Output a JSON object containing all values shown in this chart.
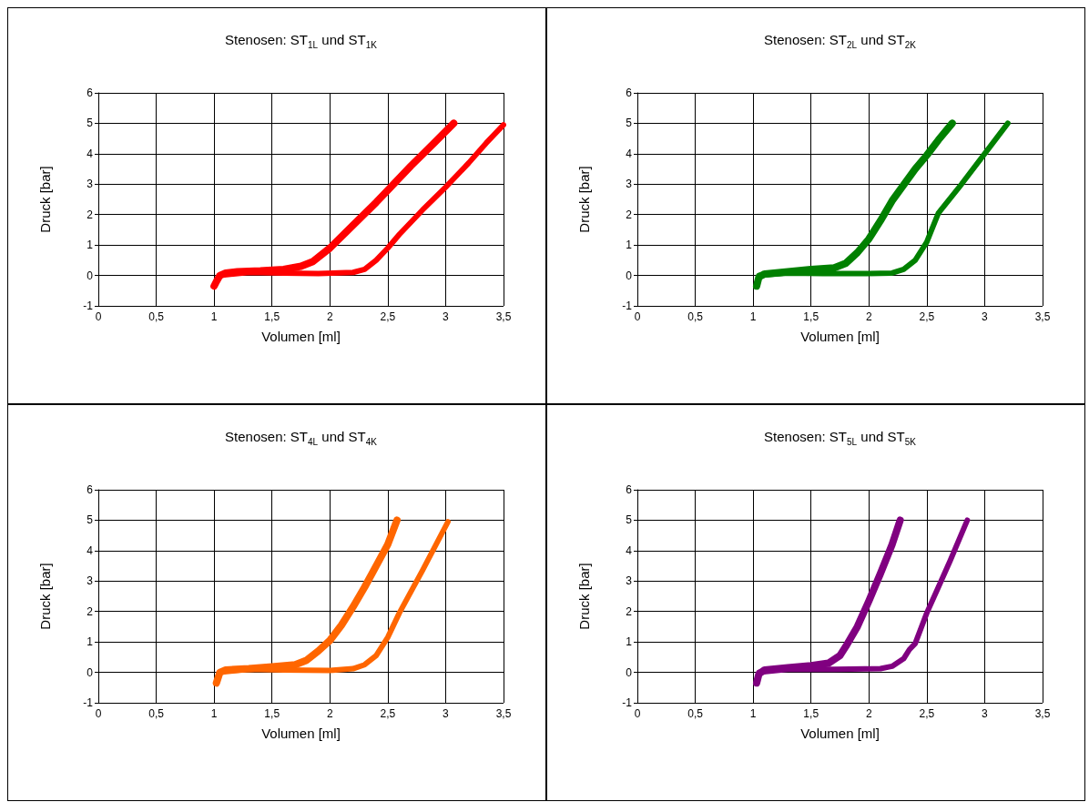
{
  "chart_data": [
    {
      "type": "line",
      "title": "Stenosen: ST$_{1L}$ und ST$_{1K}$",
      "xlabel": "Volumen [ml]",
      "ylabel": "Druck [bar]",
      "xlim": [
        0,
        3.5
      ],
      "ylim": [
        -1,
        6
      ],
      "xticks": [
        0,
        {
          "value": 0.5,
          "label": "0,5"
        },
        1,
        {
          "value": 1.5,
          "label": "1,5"
        },
        2,
        {
          "value": 2.5,
          "label": "2,5"
        },
        3,
        {
          "value": 3.5,
          "label": "3,5"
        }
      ],
      "yticks": [
        -1,
        0,
        1,
        2,
        3,
        4,
        5,
        6
      ],
      "grid": true,
      "line_style": "solid",
      "series": [
        {
          "color": "#ff0000",
          "x": [
            1.0,
            1.02,
            1.05,
            1.1,
            1.2,
            1.4,
            1.6,
            1.75,
            1.85,
            2.0,
            2.2,
            2.4,
            2.5,
            2.7,
            2.9,
            3.07
          ],
          "values": [
            -0.35,
            -0.2,
            0.0,
            0.08,
            0.12,
            0.15,
            0.2,
            0.3,
            0.45,
            0.9,
            1.65,
            2.4,
            2.8,
            3.6,
            4.35,
            5.0
          ]
        },
        {
          "color": "#ff0000",
          "x": [
            1.0,
            1.05,
            1.3,
            1.6,
            1.9,
            2.2,
            2.3,
            2.4,
            2.5,
            2.6,
            2.8,
            3.0,
            3.2,
            3.35,
            3.5
          ],
          "values": [
            -0.35,
            0.0,
            0.1,
            0.08,
            0.06,
            0.1,
            0.2,
            0.5,
            0.9,
            1.35,
            2.15,
            2.9,
            3.7,
            4.35,
            4.95
          ]
        }
      ]
    },
    {
      "type": "line",
      "title": "Stenosen: ST$_{2L}$ und ST$_{2K}$",
      "xlabel": "Volumen [ml]",
      "ylabel": "Druck [bar]",
      "xlim": [
        0,
        3.5
      ],
      "ylim": [
        -1,
        6
      ],
      "xticks": [
        0,
        {
          "value": 0.5,
          "label": "0,5"
        },
        1,
        {
          "value": 1.5,
          "label": "1,5"
        },
        2,
        {
          "value": 2.5,
          "label": "2,5"
        },
        3,
        {
          "value": 3.5,
          "label": "3,5"
        }
      ],
      "yticks": [
        -1,
        0,
        1,
        2,
        3,
        4,
        5,
        6
      ],
      "grid": true,
      "line_style": "solid",
      "series": [
        {
          "color": "#008000",
          "x": [
            1.03,
            1.05,
            1.1,
            1.3,
            1.5,
            1.7,
            1.8,
            1.9,
            2.0,
            2.1,
            2.2,
            2.4,
            2.5,
            2.6,
            2.72
          ],
          "values": [
            -0.35,
            -0.05,
            0.05,
            0.12,
            0.2,
            0.25,
            0.4,
            0.75,
            1.2,
            1.8,
            2.45,
            3.5,
            3.95,
            4.45,
            5.0
          ]
        },
        {
          "color": "#008000",
          "x": [
            1.03,
            1.05,
            1.3,
            1.6,
            2.0,
            2.2,
            2.3,
            2.4,
            2.5,
            2.6,
            2.8,
            3.0,
            3.2
          ],
          "values": [
            -0.35,
            0.0,
            0.08,
            0.06,
            0.06,
            0.08,
            0.2,
            0.5,
            1.1,
            2.05,
            3.0,
            4.0,
            5.0
          ]
        }
      ]
    },
    {
      "type": "line",
      "title": "Stenosen: ST$_{4L}$ und ST$_{4K}$",
      "xlabel": "Volumen [ml]",
      "ylabel": "Druck [bar]",
      "xlim": [
        0,
        3.5
      ],
      "ylim": [
        -1,
        6
      ],
      "xticks": [
        0,
        {
          "value": 0.5,
          "label": "0,5"
        },
        1,
        {
          "value": 1.5,
          "label": "1,5"
        },
        2,
        {
          "value": 2.5,
          "label": "2,5"
        },
        3,
        {
          "value": 3.5,
          "label": "3,5"
        }
      ],
      "yticks": [
        -1,
        0,
        1,
        2,
        3,
        4,
        5,
        6
      ],
      "grid": true,
      "line_style": "solid",
      "series": [
        {
          "color": "#ff6600",
          "x": [
            1.02,
            1.05,
            1.1,
            1.3,
            1.5,
            1.7,
            1.8,
            1.9,
            2.0,
            2.1,
            2.2,
            2.3,
            2.4,
            2.5,
            2.58
          ],
          "values": [
            -0.35,
            0.0,
            0.08,
            0.12,
            0.18,
            0.25,
            0.4,
            0.7,
            1.05,
            1.55,
            2.15,
            2.8,
            3.5,
            4.2,
            5.0
          ]
        },
        {
          "color": "#ff6600",
          "x": [
            1.02,
            1.05,
            1.3,
            1.6,
            2.0,
            2.2,
            2.3,
            2.4,
            2.5,
            2.6,
            2.8,
            3.02
          ],
          "values": [
            -0.35,
            0.0,
            0.1,
            0.08,
            0.06,
            0.12,
            0.25,
            0.55,
            1.15,
            1.95,
            3.35,
            4.95
          ]
        }
      ]
    },
    {
      "type": "line",
      "title": "Stenosen: ST$_{5L}$ und ST$_{5K}$",
      "xlabel": "Volumen [ml]",
      "ylabel": "Druck [bar]",
      "xlim": [
        0,
        3.5
      ],
      "ylim": [
        -1,
        6
      ],
      "xticks": [
        0,
        {
          "value": 0.5,
          "label": "0,5"
        },
        1,
        {
          "value": 1.5,
          "label": "1,5"
        },
        2,
        {
          "value": 2.5,
          "label": "2,5"
        },
        3,
        {
          "value": 3.5,
          "label": "3,5"
        }
      ],
      "yticks": [
        -1,
        0,
        1,
        2,
        3,
        4,
        5,
        6
      ],
      "grid": true,
      "line_style": "solid",
      "series": [
        {
          "color": "#800080",
          "x": [
            1.03,
            1.05,
            1.1,
            1.3,
            1.5,
            1.65,
            1.75,
            1.8,
            1.9,
            2.0,
            2.1,
            2.2,
            2.27
          ],
          "values": [
            -0.35,
            -0.05,
            0.08,
            0.15,
            0.22,
            0.3,
            0.55,
            0.85,
            1.5,
            2.35,
            3.25,
            4.2,
            5.0
          ]
        },
        {
          "color": "#800080",
          "x": [
            1.03,
            1.05,
            1.3,
            1.7,
            2.1,
            2.2,
            2.3,
            2.35,
            2.4,
            2.5,
            2.6,
            2.7,
            2.85
          ],
          "values": [
            -0.35,
            0.0,
            0.1,
            0.1,
            0.12,
            0.2,
            0.45,
            0.75,
            0.95,
            1.95,
            2.8,
            3.65,
            5.0
          ]
        }
      ]
    }
  ]
}
